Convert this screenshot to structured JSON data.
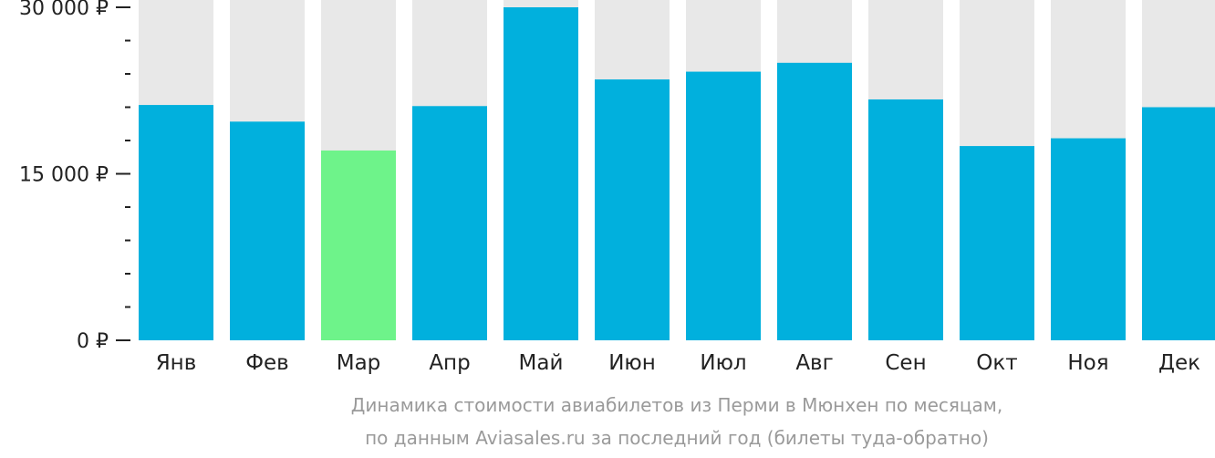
{
  "chart_data": {
    "type": "bar",
    "categories": [
      "Янв",
      "Фев",
      "Мар",
      "Апр",
      "Май",
      "Июн",
      "Июл",
      "Авг",
      "Сен",
      "Окт",
      "Ноя",
      "Дек"
    ],
    "values": [
      21200,
      19700,
      17100,
      21100,
      30000,
      23500,
      24200,
      25000,
      21700,
      17500,
      18200,
      21000
    ],
    "ylim": [
      0,
      30000
    ],
    "yticks": [
      {
        "value": 0,
        "label": "0 ₽"
      },
      {
        "value": 15000,
        "label": "15 000 ₽"
      },
      {
        "value": 30000,
        "label": "30 000 ₽"
      }
    ],
    "minor_tick_step": 3000,
    "highlight_index": 2,
    "colors": {
      "bar": "#01b0dd",
      "highlight": "#6ef38a",
      "background_bar": "#e8e8e8",
      "axis": "#222222"
    },
    "grid": false,
    "legend": "none"
  },
  "caption": {
    "line1": "Динамика стоимости авиабилетов из Перми в Мюнхен по месяцам,",
    "line2": "по данным Aviasales.ru за последний год (билеты туда-обратно)"
  }
}
